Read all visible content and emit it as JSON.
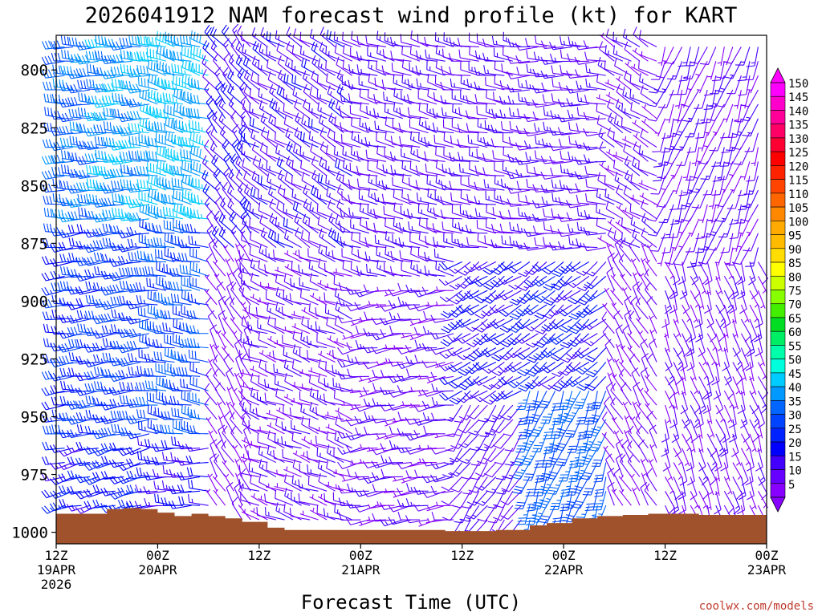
{
  "chart_data": {
    "type": "wind barb profile",
    "title": "2026041912 NAM forecast wind profile (kt) for KART",
    "xlabel": "Forecast Time (UTC)",
    "ylabel": "",
    "ylim": [
      1005,
      785
    ],
    "y_ticks": [
      "800",
      "825",
      "850",
      "875",
      "900",
      "925",
      "950",
      "975",
      "1000"
    ],
    "x_ticks": [
      {
        "h": 0,
        "l1": "12Z",
        "l2": "19APR",
        "l3": "2026"
      },
      {
        "h": 12,
        "l1": "00Z",
        "l2": "20APR",
        "l3": ""
      },
      {
        "h": 24,
        "l1": "12Z",
        "l2": "",
        "l3": ""
      },
      {
        "h": 36,
        "l1": "00Z",
        "l2": "21APR",
        "l3": ""
      },
      {
        "h": 48,
        "l1": "12Z",
        "l2": "",
        "l3": ""
      },
      {
        "h": 60,
        "l1": "00Z",
        "l2": "22APR",
        "l3": ""
      },
      {
        "h": 72,
        "l1": "12Z",
        "l2": "",
        "l3": ""
      },
      {
        "h": 84,
        "l1": "00Z",
        "l2": "23APR",
        "l3": ""
      }
    ],
    "xlim": [
      0,
      84
    ],
    "colorbar": {
      "unit": "kt",
      "levels": [
        "150",
        "145",
        "140",
        "135",
        "130",
        "125",
        "120",
        "115",
        "110",
        "105",
        "100",
        "95",
        "90",
        "85",
        "80",
        "75",
        "70",
        "65",
        "60",
        "55",
        "50",
        "45",
        "40",
        "35",
        "30",
        "25",
        "20",
        "15",
        "10",
        "5"
      ],
      "colors": [
        "#ff00ff",
        "#ff00cc",
        "#ff0099",
        "#ff0066",
        "#ff0033",
        "#ff0000",
        "#ff2200",
        "#ff4400",
        "#ff6600",
        "#ff8800",
        "#ffaa00",
        "#ffbb00",
        "#ffdd00",
        "#ffff00",
        "#ccff00",
        "#88ff00",
        "#44ee00",
        "#00dd22",
        "#00ee66",
        "#00ffaa",
        "#00ffdd",
        "#00ccff",
        "#0099ff",
        "#0066ff",
        "#0044ff",
        "#0022ff",
        "#0000ff",
        "#4400ff",
        "#6600ff",
        "#8800ff"
      ]
    },
    "wind_segments": [
      {
        "h0": 0,
        "h1": 6,
        "p_top": 785,
        "p_bot": 870,
        "spd": 34,
        "dir": 270
      },
      {
        "h0": 0,
        "h1": 6,
        "p_top": 870,
        "p_bot": 960,
        "spd": 25,
        "dir": 265
      },
      {
        "h0": 0,
        "h1": 6,
        "p_top": 960,
        "p_bot": 993,
        "spd": 20,
        "dir": 255
      },
      {
        "h0": 6,
        "h1": 12,
        "p_top": 785,
        "p_bot": 870,
        "spd": 40,
        "dir": 270
      },
      {
        "h0": 6,
        "h1": 12,
        "p_top": 870,
        "p_bot": 960,
        "spd": 28,
        "dir": 265
      },
      {
        "h0": 6,
        "h1": 12,
        "p_top": 960,
        "p_bot": 994,
        "spd": 22,
        "dir": 255
      },
      {
        "h0": 12,
        "h1": 19,
        "p_top": 785,
        "p_bot": 870,
        "spd": 42,
        "dir": 285
      },
      {
        "h0": 12,
        "h1": 19,
        "p_top": 870,
        "p_bot": 960,
        "spd": 30,
        "dir": 280
      },
      {
        "h0": 12,
        "h1": 19,
        "p_top": 960,
        "p_bot": 994,
        "spd": 18,
        "dir": 270
      },
      {
        "h0": 19,
        "h1": 24,
        "p_top": 785,
        "p_bot": 880,
        "spd": 16,
        "dir": 320
      },
      {
        "h0": 19,
        "h1": 24,
        "p_top": 880,
        "p_bot": 996,
        "spd": 8,
        "dir": 330
      },
      {
        "h0": 24,
        "h1": 36,
        "p_top": 785,
        "p_bot": 880,
        "spd": 14,
        "dir": 300
      },
      {
        "h0": 24,
        "h1": 36,
        "p_top": 880,
        "p_bot": 998,
        "spd": 10,
        "dir": 290
      },
      {
        "h0": 36,
        "h1": 48,
        "p_top": 785,
        "p_bot": 890,
        "spd": 12,
        "dir": 285
      },
      {
        "h0": 36,
        "h1": 48,
        "p_top": 890,
        "p_bot": 999,
        "spd": 10,
        "dir": 260
      },
      {
        "h0": 48,
        "h1": 56,
        "p_top": 785,
        "p_bot": 880,
        "spd": 12,
        "dir": 280
      },
      {
        "h0": 48,
        "h1": 56,
        "p_top": 880,
        "p_bot": 940,
        "spd": 18,
        "dir": 235
      },
      {
        "h0": 48,
        "h1": 56,
        "p_top": 940,
        "p_bot": 999,
        "spd": 12,
        "dir": 215
      },
      {
        "h0": 56,
        "h1": 66,
        "p_top": 785,
        "p_bot": 880,
        "spd": 12,
        "dir": 270
      },
      {
        "h0": 56,
        "h1": 66,
        "p_top": 880,
        "p_bot": 935,
        "spd": 20,
        "dir": 230
      },
      {
        "h0": 56,
        "h1": 66,
        "p_top": 935,
        "p_bot": 996,
        "spd": 32,
        "dir": 200
      },
      {
        "h0": 66,
        "h1": 72,
        "p_top": 785,
        "p_bot": 880,
        "spd": 10,
        "dir": 300
      },
      {
        "h0": 66,
        "h1": 72,
        "p_top": 880,
        "p_bot": 994,
        "spd": 8,
        "dir": 330
      },
      {
        "h0": 72,
        "h1": 84,
        "p_top": 785,
        "p_bot": 880,
        "spd": 10,
        "dir": 200
      },
      {
        "h0": 72,
        "h1": 84,
        "p_top": 880,
        "p_bot": 995,
        "spd": 9,
        "dir": 160
      }
    ],
    "surface_pressure": [
      {
        "h": 0,
        "p": 992
      },
      {
        "h": 4,
        "p": 992
      },
      {
        "h": 6,
        "p": 990
      },
      {
        "h": 8,
        "p": 989.5
      },
      {
        "h": 10,
        "p": 990
      },
      {
        "h": 12,
        "p": 991.5
      },
      {
        "h": 14,
        "p": 993
      },
      {
        "h": 16,
        "p": 992
      },
      {
        "h": 18,
        "p": 993
      },
      {
        "h": 20,
        "p": 994
      },
      {
        "h": 22,
        "p": 995.5
      },
      {
        "h": 25,
        "p": 998
      },
      {
        "h": 27,
        "p": 999
      },
      {
        "h": 36,
        "p": 999
      },
      {
        "h": 46,
        "p": 999.5
      },
      {
        "h": 52,
        "p": 999
      },
      {
        "h": 56,
        "p": 997
      },
      {
        "h": 58,
        "p": 996
      },
      {
        "h": 61,
        "p": 994
      },
      {
        "h": 64,
        "p": 993
      },
      {
        "h": 67,
        "p": 992.5
      },
      {
        "h": 70,
        "p": 992
      },
      {
        "h": 73,
        "p": 992
      },
      {
        "h": 76,
        "p": 992.5
      },
      {
        "h": 80,
        "p": 992.5
      },
      {
        "h": 84,
        "p": 993
      }
    ],
    "terrain_color": "#a0522d"
  },
  "credit": "coolwx.com/models"
}
